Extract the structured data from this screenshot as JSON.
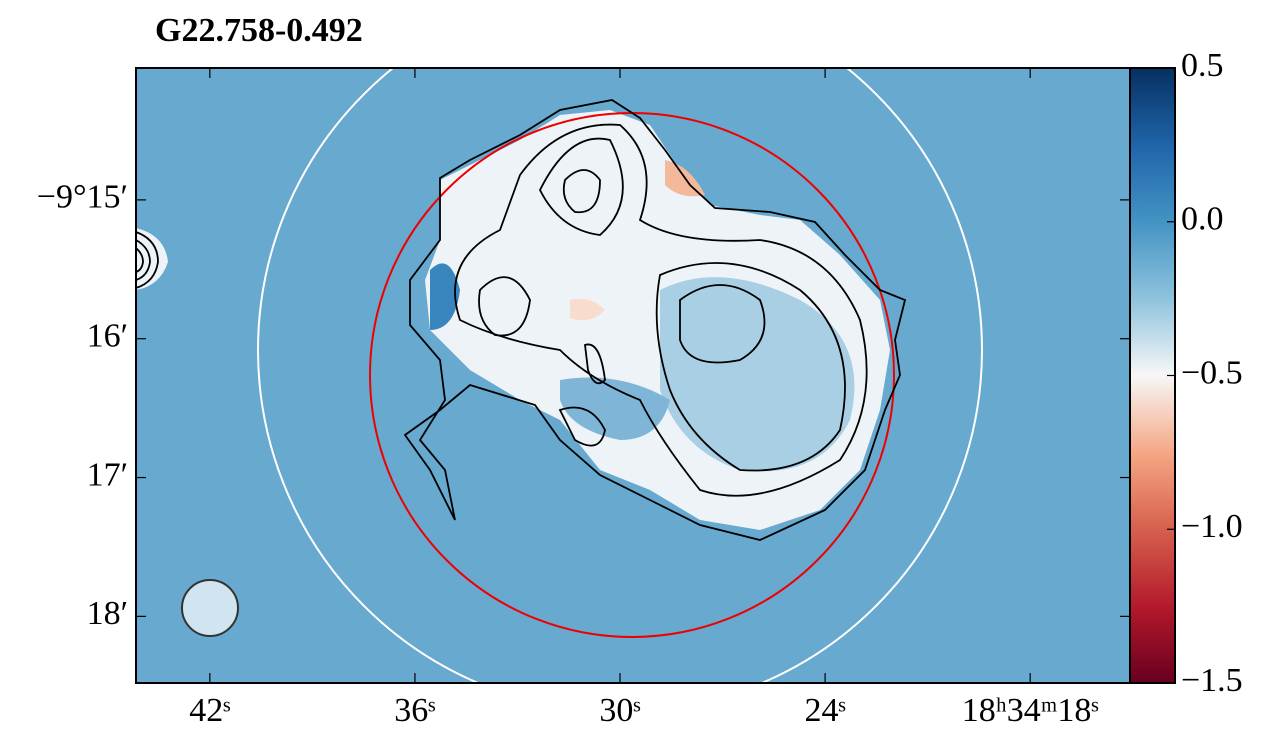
{
  "chart_data": {
    "type": "image",
    "title": "G22.758-0.492",
    "xlim": [
      44.16,
      15.08
    ],
    "xticks": [
      {
        "value": 42,
        "label": "42ˢ"
      },
      {
        "value": 36,
        "label": "36ˢ"
      },
      {
        "value": 30,
        "label": "30ˢ"
      },
      {
        "value": 24,
        "label": "24ˢ"
      },
      {
        "value": 18,
        "label": "18ʰ34ᵐ18ˢ"
      }
    ],
    "ylim": [
      18.48,
      14.05
    ],
    "yticks": [
      {
        "value": 15,
        "label": "−9°15′"
      },
      {
        "value": 16,
        "label": "16′"
      },
      {
        "value": 17,
        "label": "17′"
      },
      {
        "value": 18,
        "label": "18′"
      }
    ],
    "colorbar": {
      "lim": [
        -1.5,
        0.5
      ],
      "ticks": [
        {
          "value": 0.5,
          "label": "0.5"
        },
        {
          "value": 0,
          "label": "0.0"
        },
        {
          "value": -0.5,
          "label": "−0.5"
        },
        {
          "value": -1,
          "label": "−1.0"
        },
        {
          "value": -1.5,
          "label": "−1.5"
        }
      ]
    }
  }
}
